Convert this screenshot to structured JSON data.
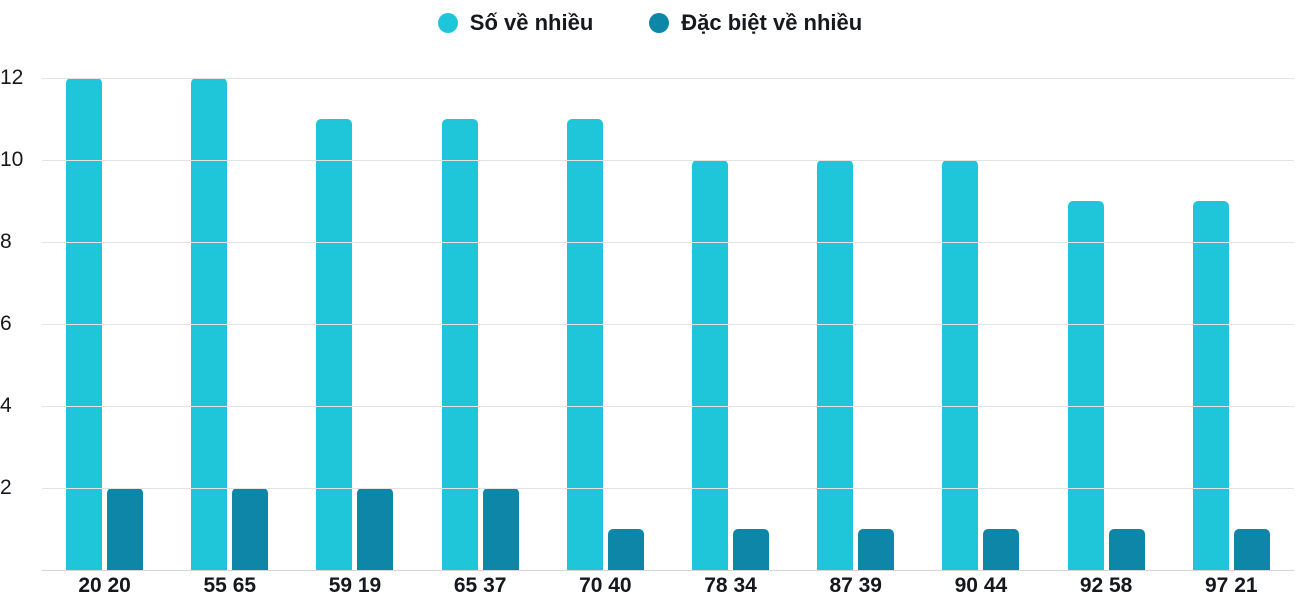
{
  "chart_data": {
    "type": "bar",
    "title": "",
    "xlabel": "",
    "ylabel": "",
    "categories": [
      "20 20",
      "55 65",
      "59 19",
      "65 37",
      "70 40",
      "78 34",
      "87 39",
      "90 44",
      "92 58",
      "97 21"
    ],
    "series": [
      {
        "name": "Số về nhiều",
        "color": "#1fc6d9",
        "values": [
          12,
          12,
          11,
          11,
          11,
          10,
          10,
          10,
          9,
          9
        ]
      },
      {
        "name": "Đặc biệt về nhiều",
        "color": "#0e86a8",
        "values": [
          2,
          2,
          2,
          2,
          1,
          1,
          1,
          1,
          1,
          1
        ]
      }
    ],
    "yticks": [
      0,
      2,
      4,
      6,
      8,
      10,
      12
    ],
    "ylim": [
      0,
      12
    ],
    "grid": true,
    "legend_position": "top-center"
  },
  "colors": {
    "series1": "#1fc6d9",
    "series2": "#0e86a8",
    "gridline": "#e3e3e3",
    "text": "#16181d"
  }
}
